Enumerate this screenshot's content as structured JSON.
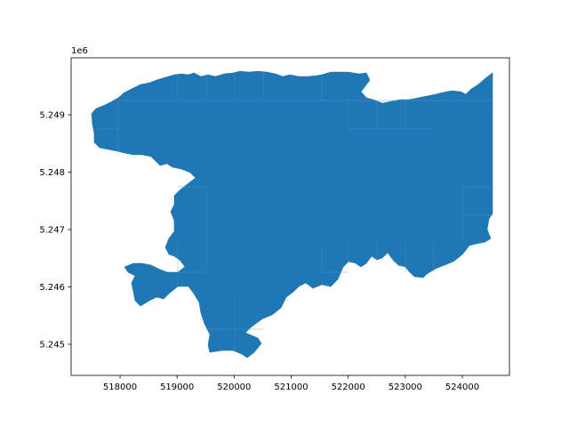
{
  "chart_data": {
    "type": "map",
    "geometry": "choropleth-like polygon map of a single region with internal grid-aligned subdivisions",
    "fill_color": "#1f77b4",
    "boundary_color": "#5b9bd0",
    "x_axis": {
      "ticks": [
        518000,
        519000,
        520000,
        521000,
        522000,
        523000,
        524000
      ],
      "tick_labels": [
        "518000",
        "519000",
        "520000",
        "521000",
        "522000",
        "523000",
        "524000"
      ],
      "range": [
        517200,
        524800
      ]
    },
    "y_axis": {
      "ticks": [
        5.245,
        5.246,
        5.247,
        5.248,
        5.249
      ],
      "tick_labels": [
        "5.245",
        "5.246",
        "5.247",
        "5.248",
        "5.249"
      ],
      "offset_label": "1e6",
      "range": [
        5.2445,
        5.25
      ]
    },
    "grid": false
  }
}
